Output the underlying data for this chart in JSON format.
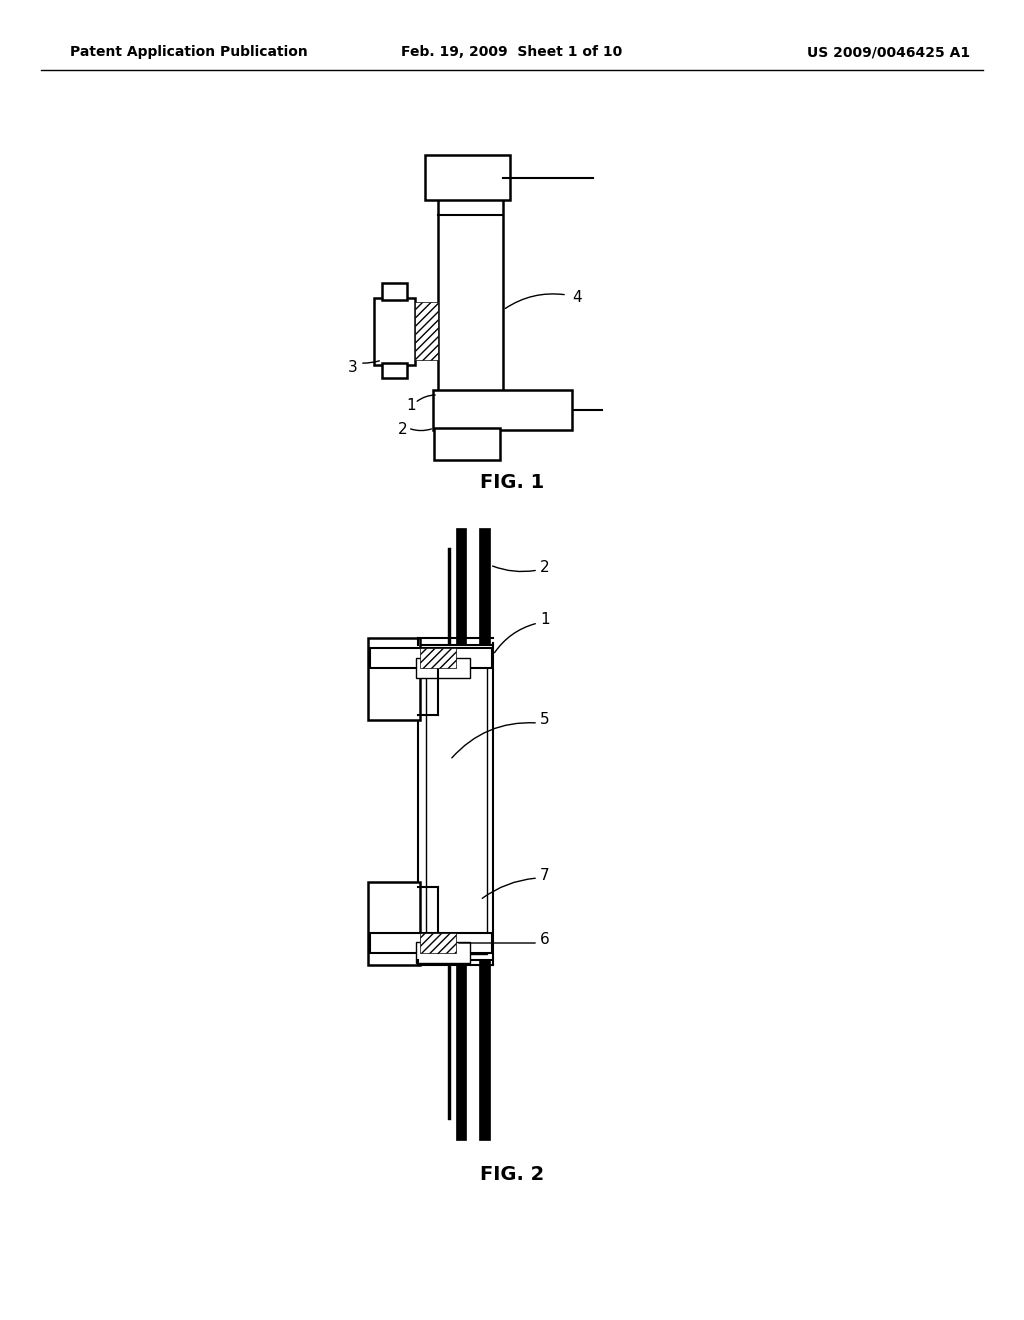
{
  "bg_color": "#ffffff",
  "line_color": "#000000",
  "header_left": "Patent Application Publication",
  "header_mid": "Feb. 19, 2009  Sheet 1 of 10",
  "header_right": "US 2009/0046425 A1",
  "fig1_caption": "FIG. 1",
  "fig2_caption": "FIG. 2"
}
